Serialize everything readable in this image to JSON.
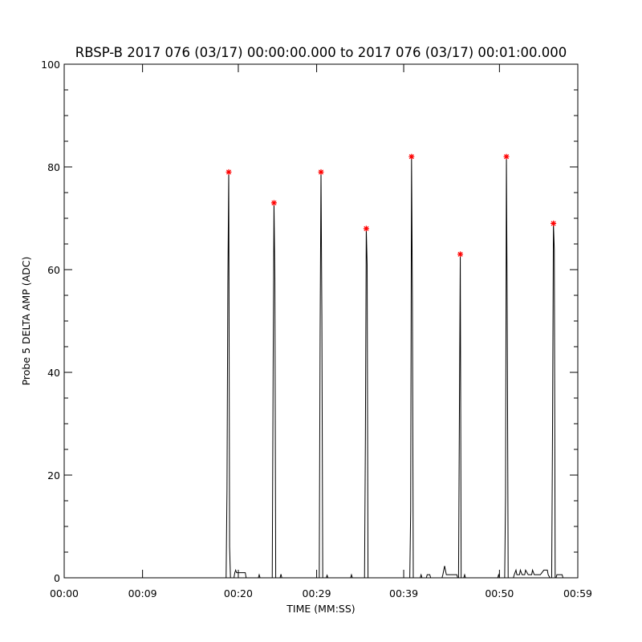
{
  "chart_data": {
    "type": "line",
    "title": "RBSP-B 2017 076 (03/17) 00:00:00.000 to 2017 076 (03/17) 00:01:00.000",
    "xlabel": "TIME (MM:SS)",
    "ylabel": "Probe 5 DELTA AMP (ADC)",
    "xlim": [
      0,
      59
    ],
    "ylim": [
      0,
      100
    ],
    "x_ticks": [
      0,
      9,
      20,
      29,
      39,
      50,
      59
    ],
    "x_tick_labels": [
      "00:00",
      "00:09",
      "00:20",
      "00:29",
      "00:39",
      "00:50",
      "00:59"
    ],
    "y_ticks": [
      0,
      20,
      40,
      60,
      80,
      100
    ],
    "y_tick_labels": [
      "0",
      "20",
      "40",
      "60",
      "80",
      "100"
    ],
    "grid": false,
    "colors": {
      "line": "#000000",
      "marker": "#ff0000"
    },
    "series": [
      {
        "type": "line",
        "points": [
          [
            0,
            0
          ],
          [
            18.6,
            0
          ],
          [
            18.7,
            17
          ],
          [
            18.8,
            57
          ],
          [
            18.9,
            79
          ],
          [
            19.0,
            6
          ],
          [
            19.1,
            0
          ],
          [
            19.5,
            0
          ],
          [
            19.6,
            1
          ],
          [
            19.7,
            1.5
          ],
          [
            19.8,
            1
          ],
          [
            20.8,
            1
          ],
          [
            20.9,
            0
          ],
          [
            22.3,
            0
          ],
          [
            22.4,
            0.6
          ],
          [
            22.5,
            0
          ],
          [
            23.9,
            0
          ],
          [
            24.0,
            40
          ],
          [
            24.1,
            73
          ],
          [
            24.2,
            58
          ],
          [
            24.3,
            0
          ],
          [
            24.8,
            0
          ],
          [
            24.9,
            0.7
          ],
          [
            25.0,
            0
          ],
          [
            29.3,
            0
          ],
          [
            29.4,
            48
          ],
          [
            29.5,
            79
          ],
          [
            29.6,
            51
          ],
          [
            29.7,
            0
          ],
          [
            30.1,
            0
          ],
          [
            30.2,
            0.5
          ],
          [
            30.3,
            0
          ],
          [
            32.9,
            0
          ],
          [
            33.0,
            0.6
          ],
          [
            33.1,
            0
          ],
          [
            34.5,
            0
          ],
          [
            34.6,
            27
          ],
          [
            34.7,
            68
          ],
          [
            34.8,
            61
          ],
          [
            34.9,
            0
          ],
          [
            39.7,
            0
          ],
          [
            39.8,
            13
          ],
          [
            39.9,
            82
          ],
          [
            40.0,
            54
          ],
          [
            40.1,
            0
          ],
          [
            40.9,
            0
          ],
          [
            41.0,
            0.6
          ],
          [
            41.1,
            0
          ],
          [
            41.6,
            0
          ],
          [
            41.7,
            0.6
          ],
          [
            42.0,
            0.6
          ],
          [
            42.1,
            0
          ],
          [
            43.4,
            0
          ],
          [
            43.5,
            0.6
          ],
          [
            43.7,
            2.3
          ],
          [
            43.9,
            0.6
          ],
          [
            45.1,
            0.6
          ],
          [
            45.2,
            0
          ],
          [
            45.3,
            0
          ],
          [
            45.4,
            32
          ],
          [
            45.5,
            63
          ],
          [
            45.6,
            0
          ],
          [
            45.9,
            0
          ],
          [
            46.0,
            0.6
          ],
          [
            46.1,
            0
          ],
          [
            49.8,
            0
          ],
          [
            49.9,
            0.6
          ],
          [
            50.0,
            0
          ],
          [
            50.6,
            0
          ],
          [
            50.7,
            16
          ],
          [
            50.8,
            82
          ],
          [
            50.9,
            48
          ],
          [
            51.0,
            0
          ],
          [
            51.6,
            0
          ],
          [
            51.7,
            0.6
          ],
          [
            51.9,
            1.5
          ],
          [
            52.0,
            0.6
          ],
          [
            52.3,
            0.6
          ],
          [
            52.4,
            1.5
          ],
          [
            52.6,
            0.6
          ],
          [
            52.9,
            0.6
          ],
          [
            53.0,
            1.5
          ],
          [
            53.3,
            0.6
          ],
          [
            53.7,
            0.6
          ],
          [
            53.8,
            1.5
          ],
          [
            54.0,
            0.6
          ],
          [
            54.7,
            0.6
          ],
          [
            55.1,
            1.5
          ],
          [
            55.5,
            1.5
          ],
          [
            55.6,
            0.6
          ],
          [
            55.8,
            0
          ],
          [
            56.0,
            0
          ],
          [
            56.1,
            30
          ],
          [
            56.2,
            69
          ],
          [
            56.3,
            64
          ],
          [
            56.4,
            0
          ],
          [
            56.5,
            0
          ],
          [
            56.6,
            0.6
          ],
          [
            57.2,
            0.6
          ],
          [
            57.3,
            0
          ],
          [
            59,
            0
          ]
        ]
      },
      {
        "type": "scatter",
        "marker": "asterisk",
        "points": [
          [
            18.9,
            79
          ],
          [
            24.1,
            73
          ],
          [
            29.5,
            79
          ],
          [
            34.7,
            68
          ],
          [
            39.9,
            82
          ],
          [
            45.5,
            63
          ],
          [
            50.8,
            82
          ],
          [
            56.2,
            69
          ]
        ]
      }
    ]
  }
}
